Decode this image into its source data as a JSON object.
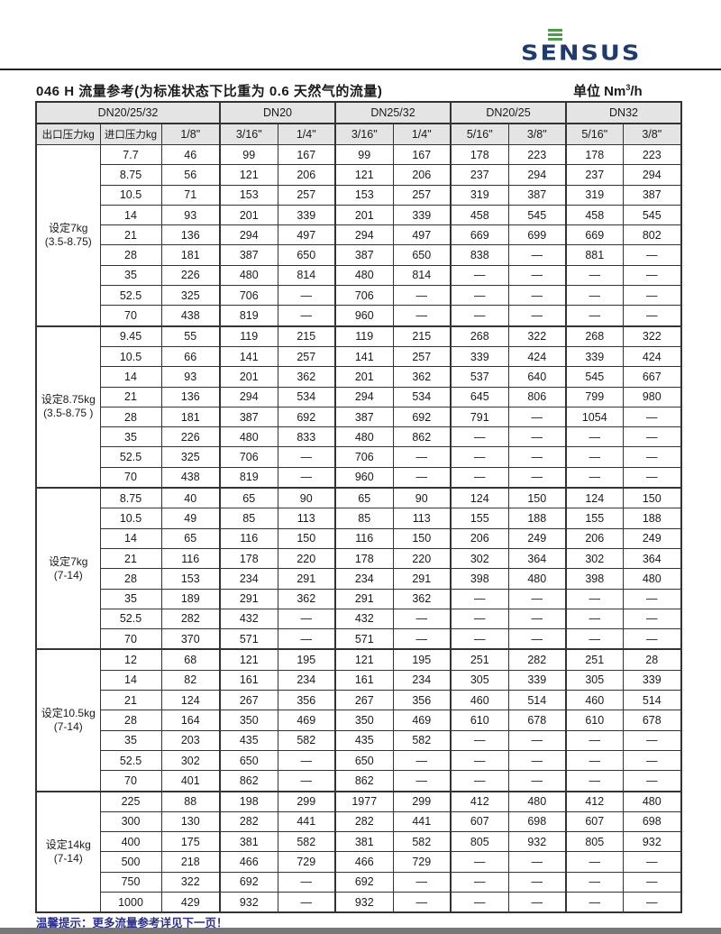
{
  "logo": {
    "text": "SENSUS",
    "bar_color": "#4a9e4a",
    "text_color": "#1f3a6e"
  },
  "title": "046 H 流量参考(为标准状态下比重为 0.6 天然气的流量)",
  "unit": {
    "label": "单位 Nm",
    "sup": "3",
    "suffix": "/h"
  },
  "table": {
    "header_groups": [
      "DN20/25/32",
      "DN20",
      "DN25/32",
      "DN20/25",
      "DN32"
    ],
    "sub_headers": [
      "出口压力kg",
      "进口压力kg",
      "1/8\"",
      "3/16\"",
      "1/4\"",
      "3/16\"",
      "1/4\"",
      "5/16\"",
      "3/8\"",
      "5/16\"",
      "3/8\""
    ],
    "groups": [
      {
        "label": "设定7kg",
        "range": "(3.5-8.75)",
        "rows": [
          [
            "7.7",
            "46",
            "99",
            "167",
            "99",
            "167",
            "178",
            "223",
            "178",
            "223"
          ],
          [
            "8.75",
            "56",
            "121",
            "206",
            "121",
            "206",
            "237",
            "294",
            "237",
            "294"
          ],
          [
            "10.5",
            "71",
            "153",
            "257",
            "153",
            "257",
            "319",
            "387",
            "319",
            "387"
          ],
          [
            "14",
            "93",
            "201",
            "339",
            "201",
            "339",
            "458",
            "545",
            "458",
            "545"
          ],
          [
            "21",
            "136",
            "294",
            "497",
            "294",
            "497",
            "669",
            "699",
            "669",
            "802"
          ],
          [
            "28",
            "181",
            "387",
            "650",
            "387",
            "650",
            "838",
            "—",
            "881",
            "—"
          ],
          [
            "35",
            "226",
            "480",
            "814",
            "480",
            "814",
            "—",
            "—",
            "—",
            "—"
          ],
          [
            "52.5",
            "325",
            "706",
            "—",
            "706",
            "—",
            "—",
            "—",
            "—",
            "—"
          ],
          [
            "70",
            "438",
            "819",
            "—",
            "960",
            "—",
            "—",
            "—",
            "—",
            "—"
          ]
        ]
      },
      {
        "label": "设定8.75kg",
        "range": "(3.5-8.75 )",
        "rows": [
          [
            "9.45",
            "55",
            "119",
            "215",
            "119",
            "215",
            "268",
            "322",
            "268",
            "322"
          ],
          [
            "10.5",
            "66",
            "141",
            "257",
            "141",
            "257",
            "339",
            "424",
            "339",
            "424"
          ],
          [
            "14",
            "93",
            "201",
            "362",
            "201",
            "362",
            "537",
            "640",
            "545",
            "667"
          ],
          [
            "21",
            "136",
            "294",
            "534",
            "294",
            "534",
            "645",
            "806",
            "799",
            "980"
          ],
          [
            "28",
            "181",
            "387",
            "692",
            "387",
            "692",
            "791",
            "—",
            "1054",
            "—"
          ],
          [
            "35",
            "226",
            "480",
            "833",
            "480",
            "862",
            "—",
            "—",
            "—",
            "—"
          ],
          [
            "52.5",
            "325",
            "706",
            "—",
            "706",
            "—",
            "—",
            "—",
            "—",
            "—"
          ],
          [
            "70",
            "438",
            "819",
            "—",
            "960",
            "—",
            "—",
            "—",
            "—",
            "—"
          ]
        ]
      },
      {
        "label": "设定7kg",
        "range": "(7-14)",
        "rows": [
          [
            "8.75",
            "40",
            "65",
            "90",
            "65",
            "90",
            "124",
            "150",
            "124",
            "150"
          ],
          [
            "10.5",
            "49",
            "85",
            "113",
            "85",
            "113",
            "155",
            "188",
            "155",
            "188"
          ],
          [
            "14",
            "65",
            "116",
            "150",
            "116",
            "150",
            "206",
            "249",
            "206",
            "249"
          ],
          [
            "21",
            "116",
            "178",
            "220",
            "178",
            "220",
            "302",
            "364",
            "302",
            "364"
          ],
          [
            "28",
            "153",
            "234",
            "291",
            "234",
            "291",
            "398",
            "480",
            "398",
            "480"
          ],
          [
            "35",
            "189",
            "291",
            "362",
            "291",
            "362",
            "—",
            "—",
            "—",
            "—"
          ],
          [
            "52.5",
            "282",
            "432",
            "—",
            "432",
            "—",
            "—",
            "—",
            "—",
            "—"
          ],
          [
            "70",
            "370",
            "571",
            "—",
            "571",
            "—",
            "—",
            "—",
            "—",
            "—"
          ]
        ]
      },
      {
        "label": "设定10.5kg",
        "range": "(7-14)",
        "rows": [
          [
            "12",
            "68",
            "121",
            "195",
            "121",
            "195",
            "251",
            "282",
            "251",
            "28"
          ],
          [
            "14",
            "82",
            "161",
            "234",
            "161",
            "234",
            "305",
            "339",
            "305",
            "339"
          ],
          [
            "21",
            "124",
            "267",
            "356",
            "267",
            "356",
            "460",
            "514",
            "460",
            "514"
          ],
          [
            "28",
            "164",
            "350",
            "469",
            "350",
            "469",
            "610",
            "678",
            "610",
            "678"
          ],
          [
            "35",
            "203",
            "435",
            "582",
            "435",
            "582",
            "—",
            "—",
            "—",
            "—"
          ],
          [
            "52.5",
            "302",
            "650",
            "—",
            "650",
            "—",
            "—",
            "—",
            "—",
            "—"
          ],
          [
            "70",
            "401",
            "862",
            "—",
            "862",
            "—",
            "—",
            "—",
            "—",
            "—"
          ]
        ]
      },
      {
        "label": "设定14kg",
        "range": "(7-14)",
        "rows": [
          [
            "225",
            "88",
            "198",
            "299",
            "1977",
            "299",
            "412",
            "480",
            "412",
            "480"
          ],
          [
            "300",
            "130",
            "282",
            "441",
            "282",
            "441",
            "607",
            "698",
            "607",
            "698"
          ],
          [
            "400",
            "175",
            "381",
            "582",
            "381",
            "582",
            "805",
            "932",
            "805",
            "932"
          ],
          [
            "500",
            "218",
            "466",
            "729",
            "466",
            "729",
            "—",
            "—",
            "—",
            "—"
          ],
          [
            "750",
            "322",
            "692",
            "—",
            "692",
            "—",
            "—",
            "—",
            "—",
            "—"
          ],
          [
            "1000",
            "429",
            "932",
            "—",
            "932",
            "—",
            "—",
            "—",
            "—",
            "—"
          ]
        ]
      }
    ]
  },
  "footer": "温馨提示：更多流量参考详见下一页！",
  "colors": {
    "footer_text": "#2b2f8f",
    "header_bg": "#e4e4e4"
  }
}
